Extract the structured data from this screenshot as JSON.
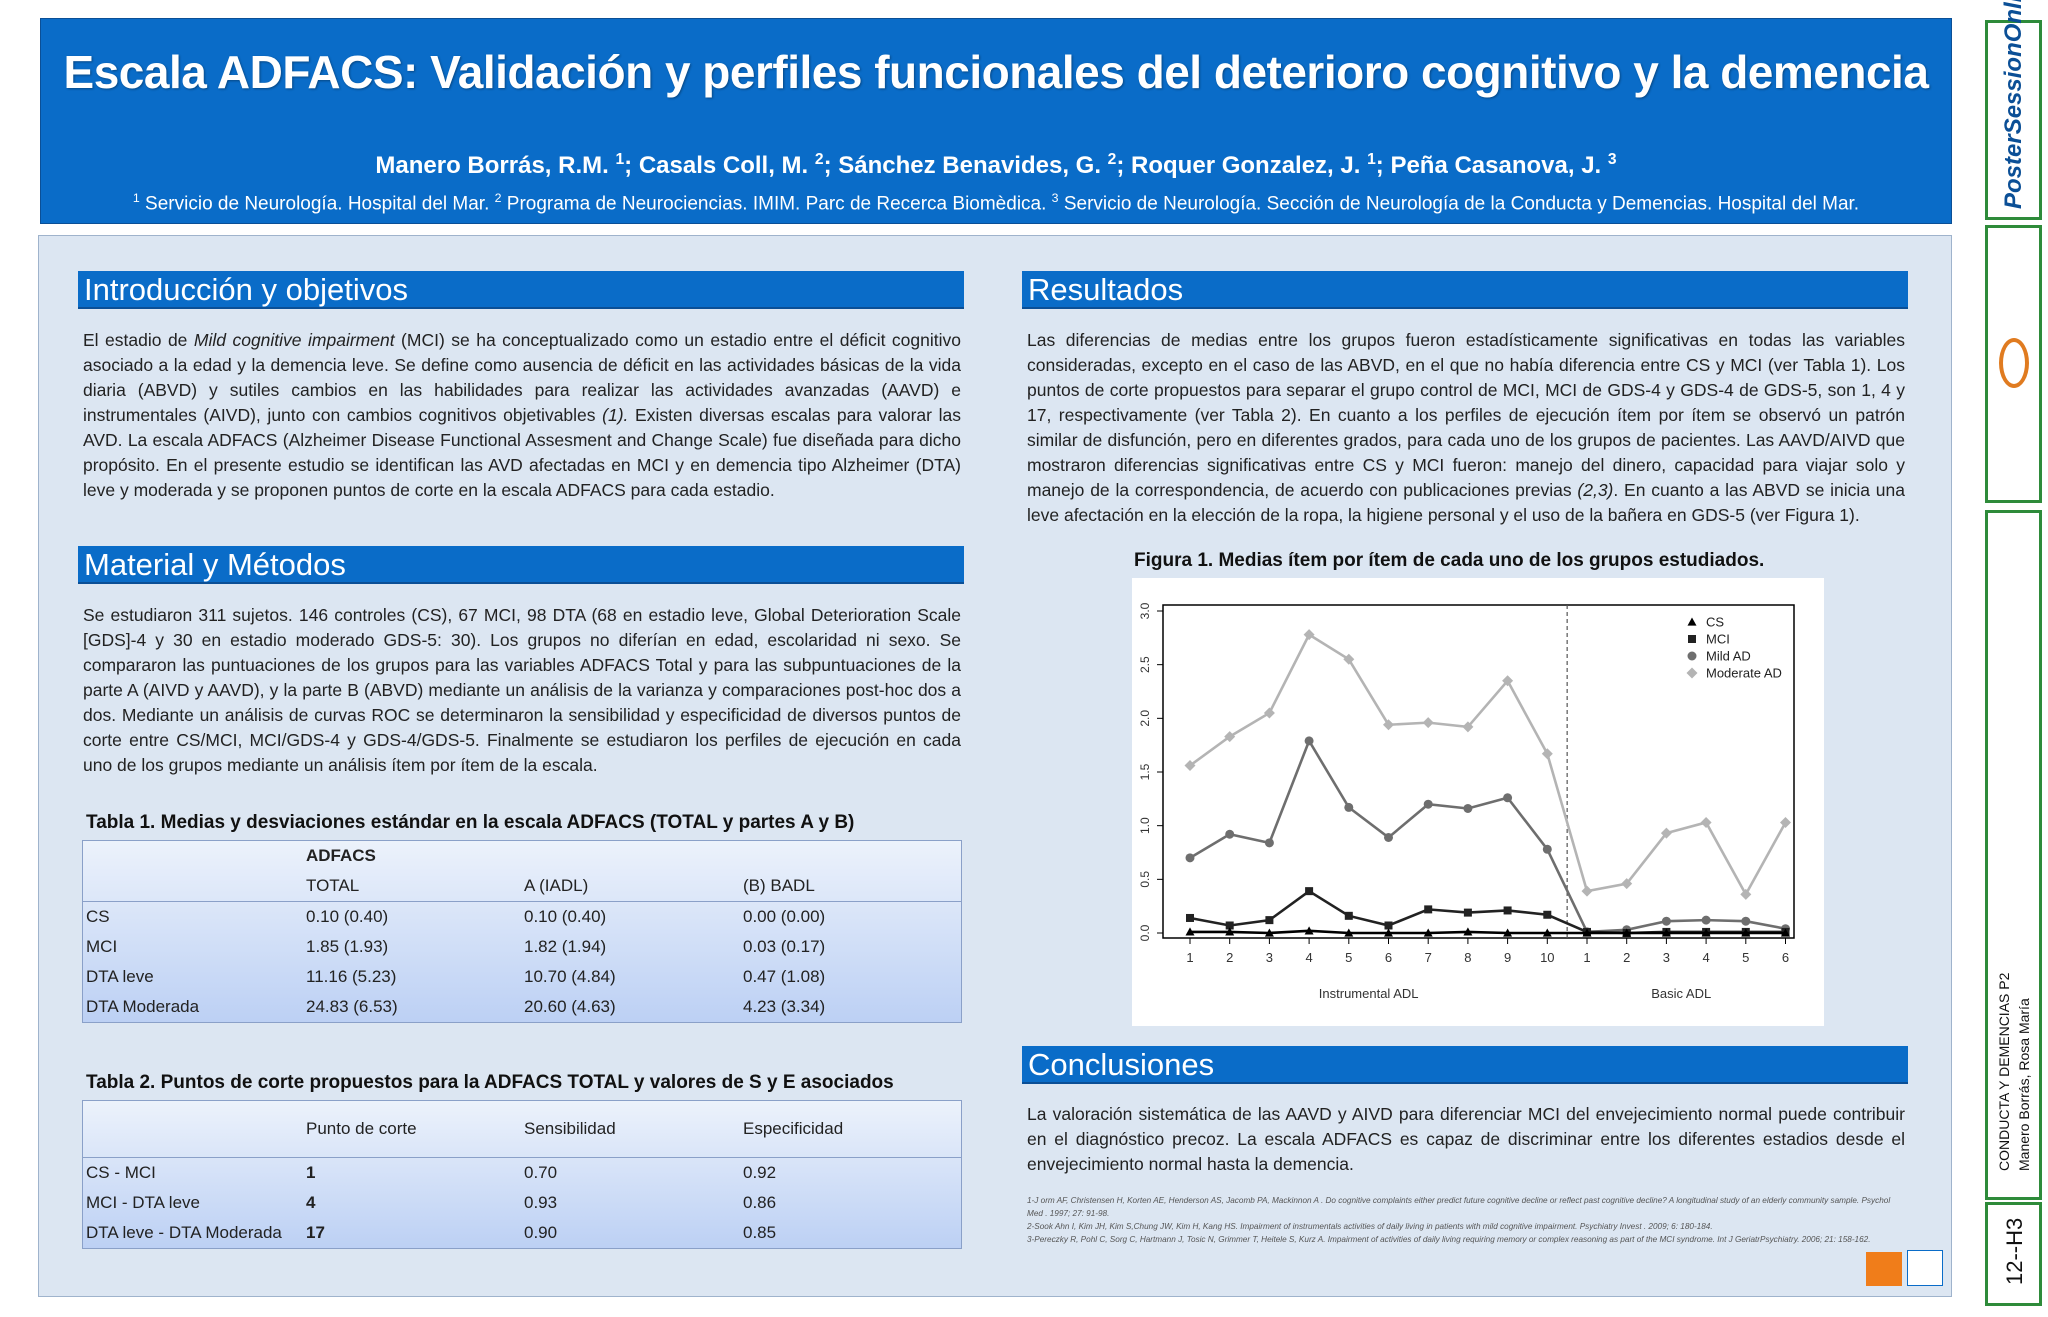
{
  "header": {
    "title": "Escala ADFACS: Validación y perfiles funcionales del deterioro cognitivo y la demencia",
    "authors": [
      {
        "name": "Manero Borrás, R.M. ",
        "sup": "1",
        "sep": "; "
      },
      {
        "name": "Casals Coll, M. ",
        "sup": "2",
        "sep": "; "
      },
      {
        "name": "Sánchez Benavides, G. ",
        "sup": "2",
        "sep": "; "
      },
      {
        "name": "Roquer Gonzalez, J. ",
        "sup": "1",
        "sep": "; "
      },
      {
        "name": "Peña Casanova, J. ",
        "sup": "3",
        "sep": ""
      }
    ],
    "affiliations": [
      {
        "sup": "1",
        "text": " Servicio de Neurología. Hospital del Mar. "
      },
      {
        "sup": "2",
        "text": " Programa de Neurociencias. IMIM. Parc de Recerca Biomèdica. "
      },
      {
        "sup": "3",
        "text": " Servicio de Neurología. Sección de Neurología de la Conducta y Demencias. Hospital del Mar."
      }
    ]
  },
  "intro": {
    "heading": "Introducción y objetivos",
    "p1": "El estadio de ",
    "p1_italic": "Mild cognitive impairment",
    "p2": " (MCI) se ha conceptualizado como un estadio entre el déficit cognitivo asociado a la edad y la demencia  leve. Se define como ausencia de déficit en las actividades básicas de la vida diaria (ABVD) y sutiles cambios en las habilidades para realizar las actividades avanzadas (AAVD) e instrumentales (AIVD), junto con cambios cognitivos objetivables ",
    "p2_italic": "(1).",
    "p3": " Existen diversas escalas para valorar las AVD. La escala ADFACS (Alzheimer Disease Functional Assesment and Change Scale) fue diseñada para dicho propósito. En el presente estudio se identifican las AVD afectadas en MCI y en demencia tipo Alzheimer (DTA) leve y moderada y se proponen puntos de corte en la escala ADFACS para cada estadio."
  },
  "methods": {
    "heading": "Material y Métodos",
    "text": "Se estudiaron 311 sujetos. 146 controles (CS), 67 MCI, 98 DTA (68 en estadio leve, Global Deterioration Scale [GDS]-4 y 30 en estadio moderado GDS-5: 30). Los grupos no diferían en edad, escolaridad ni sexo. Se compararon las puntuaciones de los grupos para las variables ADFACS Total y para las subpuntuaciones de la parte A (AIVD y AAVD), y la parte B (ABVD) mediante un análisis de la varianza y comparaciones post-hoc dos a dos. Mediante un análisis de curvas ROC se determinaron la sensibilidad y especificidad de diversos puntos de corte entre CS/MCI, MCI/GDS-4 y GDS-4/GDS-5. Finalmente se estudiaron los perfiles de ejecución en cada uno de los grupos mediante un análisis ítem por ítem de la escala."
  },
  "table1": {
    "caption": "Tabla 1. Medias y desviaciones estándar en la escala ADFACS (TOTAL y partes A y B)",
    "group_header": "ADFACS",
    "columns": [
      "TOTAL",
      "A (IADL)",
      "(B) BADL"
    ],
    "rows": [
      [
        "CS",
        "0.10 (0.40)",
        "0.10 (0.40)",
        "0.00 (0.00)"
      ],
      [
        "MCI",
        "1.85 (1.93)",
        "1.82 (1.94)",
        "0.03 (0.17)"
      ],
      [
        "DTA leve",
        "11.16 (5.23)",
        "10.70 (4.84)",
        "0.47 (1.08)"
      ],
      [
        "DTA Moderada",
        "24.83 (6.53)",
        "20.60 (4.63)",
        "4.23 (3.34)"
      ]
    ]
  },
  "table2": {
    "caption": "Tabla 2. Puntos de corte propuestos para la ADFACS TOTAL y valores de S y E asociados",
    "columns": [
      "Punto de corte",
      "Sensibilidad",
      "Especificidad"
    ],
    "rows": [
      [
        "CS - MCI",
        "1",
        "0.70",
        "0.92"
      ],
      [
        "MCI - DTA leve",
        "4",
        "0.93",
        "0.86"
      ],
      [
        "DTA leve - DTA Moderada",
        "17",
        "0.90",
        "0.85"
      ]
    ]
  },
  "results": {
    "heading": "Resultados",
    "p1": "Las diferencias de medias entre los grupos fueron estadísticamente significativas en todas las variables consideradas, excepto en el caso de las ABVD, en el que no había diferencia entre CS y MCI (ver Tabla 1). Los puntos de corte propuestos para separar el grupo control de MCI, MCI de GDS-4 y GDS-4 de GDS-5, son 1, 4 y 17, respectivamente (ver Tabla 2). En cuanto a los perfiles de ejecución ítem por ítem se observó un patrón similar de disfunción, pero en diferentes grados, para cada uno de los grupos de pacientes. Las AAVD/AIVD que mostraron diferencias significativas entre CS y MCI fueron: manejo del dinero, capacidad para viajar solo y manejo de la correspondencia, de acuerdo con publicaciones previas ",
    "p1_italic": "(2,3)",
    "p2": ". En cuanto a las ABVD se inicia una leve afectación en la elección de la ropa, la higiene personal y el uso de la bañera en GDS-5 (ver Figura 1)."
  },
  "figure": {
    "caption": "Figura 1. Medias ítem por ítem de cada uno de los grupos estudiados."
  },
  "chart_data": {
    "type": "line",
    "x": [
      "1",
      "2",
      "3",
      "4",
      "5",
      "6",
      "7",
      "8",
      "9",
      "10",
      "1",
      "2",
      "3",
      "4",
      "5",
      "6"
    ],
    "group_labels": [
      "Instrumental ADL",
      "Basic ADL"
    ],
    "ylim": [
      0,
      3.0
    ],
    "yticks": [
      "0.0",
      "0.5",
      "1.0",
      "1.5",
      "2.0",
      "2.5",
      "3.0"
    ],
    "legend_position": "top-right",
    "separator_after_index": 9,
    "series": [
      {
        "name": "CS",
        "marker": "triangle",
        "color": "#000000",
        "values": [
          0.01,
          0.01,
          0.0,
          0.02,
          0.0,
          0.0,
          0.0,
          0.01,
          0.0,
          0.0,
          0.0,
          0.0,
          0.0,
          0.0,
          0.0,
          0.0
        ]
      },
      {
        "name": "MCI",
        "marker": "square",
        "color": "#222222",
        "values": [
          0.14,
          0.07,
          0.12,
          0.39,
          0.16,
          0.07,
          0.22,
          0.19,
          0.21,
          0.17,
          0.01,
          0.0,
          0.01,
          0.01,
          0.01,
          0.01
        ]
      },
      {
        "name": "Mild AD",
        "marker": "circle",
        "color": "#6e6e6e",
        "values": [
          0.7,
          0.92,
          0.84,
          1.79,
          1.17,
          0.89,
          1.2,
          1.16,
          1.26,
          0.78,
          0.01,
          0.03,
          0.11,
          0.12,
          0.11,
          0.04
        ]
      },
      {
        "name": "Moderate AD",
        "marker": "diamond",
        "color": "#b4b4b4",
        "values": [
          1.56,
          1.83,
          2.05,
          2.78,
          2.55,
          1.94,
          1.96,
          1.92,
          2.35,
          1.67,
          0.39,
          0.46,
          0.93,
          1.03,
          0.36,
          1.03
        ]
      }
    ]
  },
  "conclusions": {
    "heading": "Conclusiones",
    "text": "La valoración sistemática de las AAVD y AIVD para diferenciar MCI del envejecimiento normal puede contribuir en el diagnóstico precoz. La escala ADFACS es capaz de discriminar entre los diferentes estadios desde el envejecimiento normal hasta la demencia."
  },
  "references": [
    "1-J orm AF, Christensen H, Korten AE, Henderson AS, Jacomb PA, Mackinnon A . Do cognitive complaints either predict future cognitive decline or reflect past cognitive decline? A longitudinal study of an elderly community sample. Psychol Med . 1997; 27: 91-98.",
    "2-Sook Ahn I, Kim JH, Kim S,Chung JW, Kim H, Kang HS. Impairment of instrumentals activities of daily living in patients with mild cognitive impairment. Psychiatry Invest . 2009; 6: 180-184.",
    "3-Pereczky R, Pohl C, Sorg C, Hartmann J, Tosic N, Grimmer T, Heitele S, Kurz A. Impairment of activities of daily living requiring memory or complex reasoning as part of the MCI syndrome. Int J GeriatrPsychiatry. 2006; 21: 158-162."
  ],
  "sidebar": {
    "logo_text": "PosterSessionOnline",
    "category": "CONDUCTA Y DEMENCIAS P2",
    "author": "Manero Borrás, Rosa María",
    "code": "12--H3"
  },
  "colors": {
    "header_blue": "#0a6cc8",
    "panel_bg": "#dce6f2",
    "sidebar_green": "#2e8b3a"
  }
}
